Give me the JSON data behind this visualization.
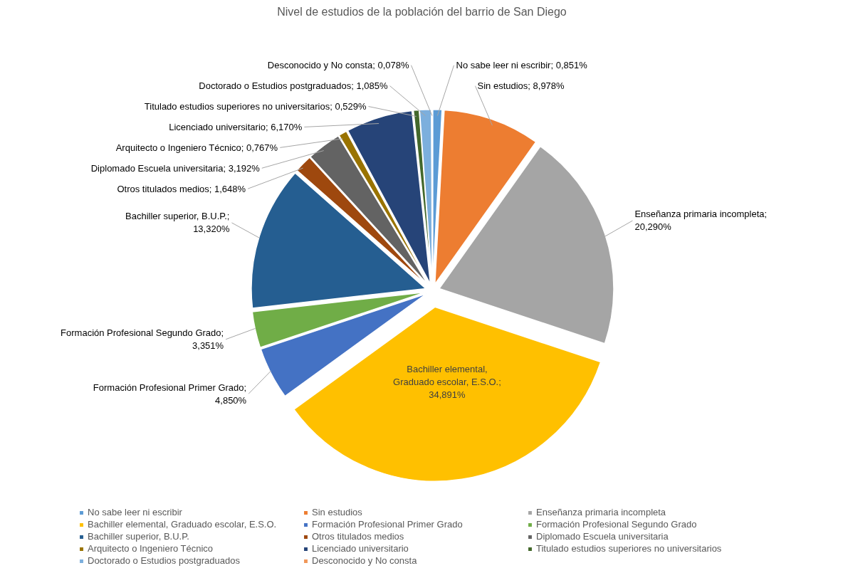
{
  "chart_data": {
    "type": "pie",
    "title": "Nivel de estudios de la población del barrio de San Diego",
    "categories": [
      "No sabe leer ni escribir",
      "Sin estudios",
      "Enseñanza primaria incompleta",
      "Bachiller elemental, Graduado escolar, E.S.O.",
      "Formación Profesional Primer Grado",
      "Formación Profesional Segundo Grado",
      "Bachiller superior, B.U.P.",
      "Otros titulados medios",
      "Diplomado Escuela universitaria",
      "Arquitecto o Ingeniero Técnico",
      "Licenciado universitario",
      "Titulado estudios superiores no universitarios",
      "Doctorado o Estudios postgraduados",
      "Desconocido y No consta"
    ],
    "values": [
      0.851,
      8.978,
      20.29,
      34.891,
      4.85,
      3.351,
      13.32,
      1.648,
      3.192,
      0.767,
      6.17,
      0.529,
      1.085,
      0.078
    ],
    "value_labels": [
      "No sabe leer ni escribir; 0,851%",
      "Sin estudios; 8,978%",
      "Enseñanza primaria incompleta; 20,290%",
      "Bachiller elemental, Graduado escolar, E.S.O.; 34,891%",
      "Formación Profesional Primer Grado; 4,850%",
      "Formación Profesional Segundo Grado; 3,351%",
      "Bachiller superior, B.U.P.; 13,320%",
      "Otros titulados medios; 1,648%",
      "Diplomado Escuela universitaria; 3,192%",
      "Arquitecto o Ingeniero Técnico; 0,767%",
      "Licenciado universitario; 6,170%",
      "Titulado estudios superiores no universitarios; 0,529%",
      "Doctorado o Estudios postgraduados; 1,085%",
      "Desconocido y No consta; 0,078%"
    ],
    "colors": [
      "#5b9bd5",
      "#ed7d31",
      "#a5a5a5",
      "#ffc000",
      "#4472c4",
      "#70ad47",
      "#255e91",
      "#9e480e",
      "#636363",
      "#997300",
      "#264478",
      "#43682b",
      "#7cafdd",
      "#f1975a"
    ],
    "legend": "bottom"
  }
}
